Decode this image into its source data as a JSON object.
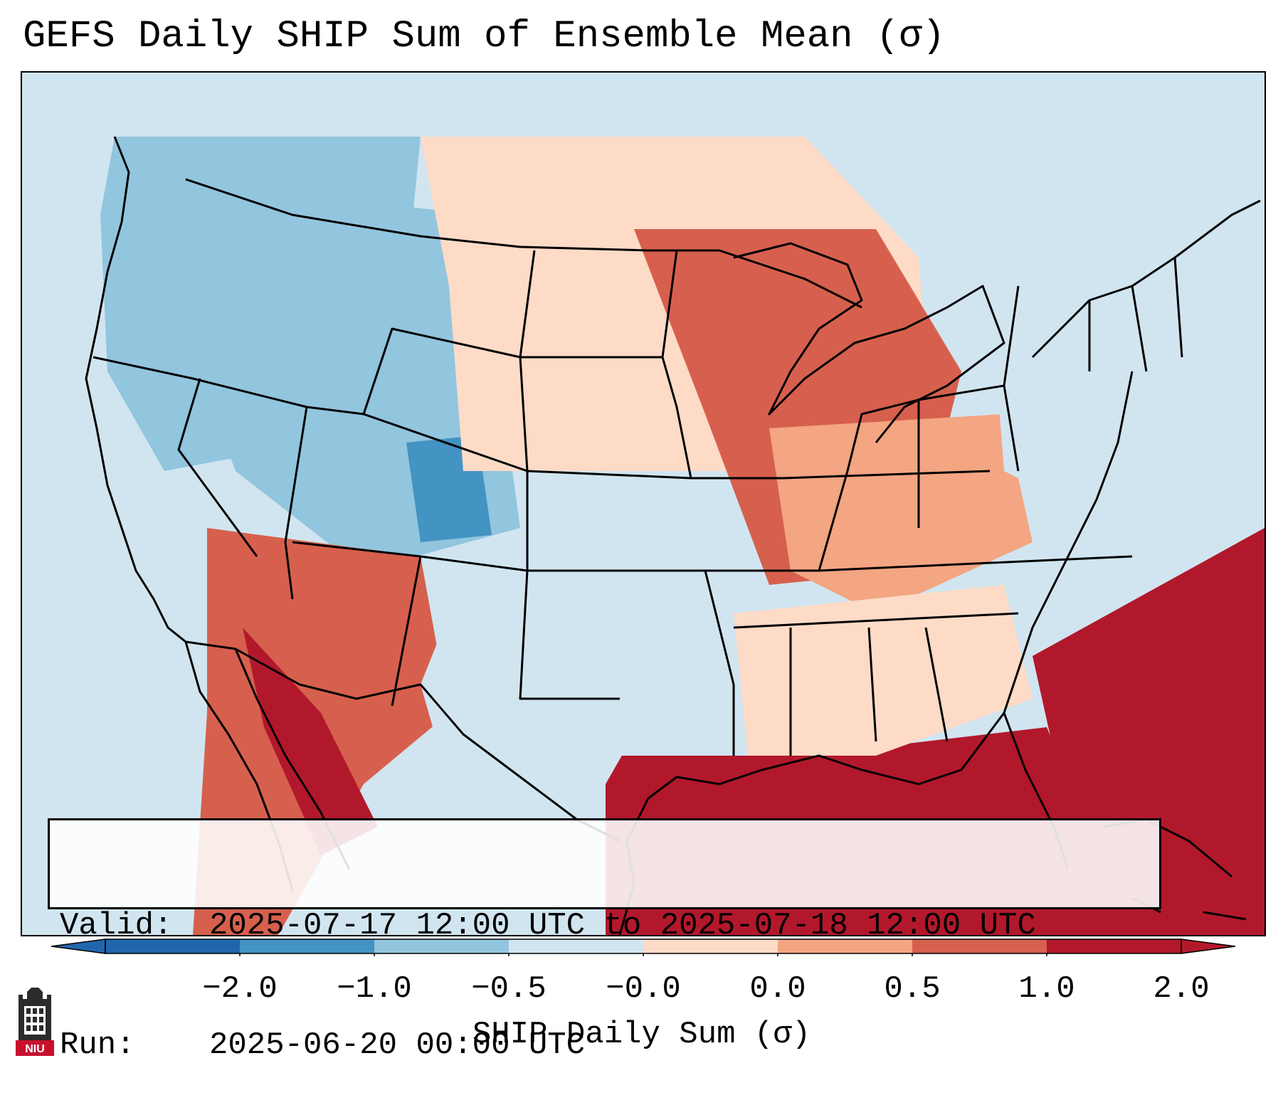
{
  "title": "GEFS Daily SHIP Sum of Ensemble Mean (σ)",
  "info": {
    "valid_label": "Valid:",
    "valid_value": "2025-07-17 12:00 UTC to 2025-07-18 12:00 UTC",
    "run_label": "Run:",
    "run_value": "2025-06-20 00:00 UTC"
  },
  "colorbar": {
    "label": "SHIP Daily Sum (σ)",
    "tick_labels": [
      "−2.0",
      "−1.0",
      "−0.5",
      "−0.0",
      "0.0",
      "0.5",
      "1.0",
      "2.0"
    ],
    "colors": [
      "#2166ac",
      "#4393c3",
      "#92c5de",
      "#d1e5f0",
      "#fddbc7",
      "#f4a582",
      "#d6604d",
      "#b2182b"
    ],
    "extend": "both"
  },
  "logo": {
    "icon": "niu-logo-icon",
    "text": "NIU",
    "color": "#c8102e"
  },
  "regions": [
    {
      "name": "ocean-background",
      "color": "#d1e5f0"
    },
    {
      "name": "pacific-northwest",
      "color": "#92c5de"
    },
    {
      "name": "rockies",
      "color": "#92c5de"
    },
    {
      "name": "colorado-core",
      "color": "#4393c3"
    },
    {
      "name": "northern-plains",
      "color": "#fddbc7"
    },
    {
      "name": "upper-midwest",
      "color": "#d6604d"
    },
    {
      "name": "ohio-valley",
      "color": "#f4a582"
    },
    {
      "name": "northeast",
      "color": "#d1e5f0"
    },
    {
      "name": "southwest",
      "color": "#d6604d"
    },
    {
      "name": "gulf-of-california",
      "color": "#b2182b"
    },
    {
      "name": "gulf-of-mexico",
      "color": "#b2182b"
    },
    {
      "name": "western-atlantic",
      "color": "#b2182b"
    },
    {
      "name": "texas",
      "color": "#d1e5f0"
    },
    {
      "name": "southeast",
      "color": "#fddbc7"
    }
  ]
}
